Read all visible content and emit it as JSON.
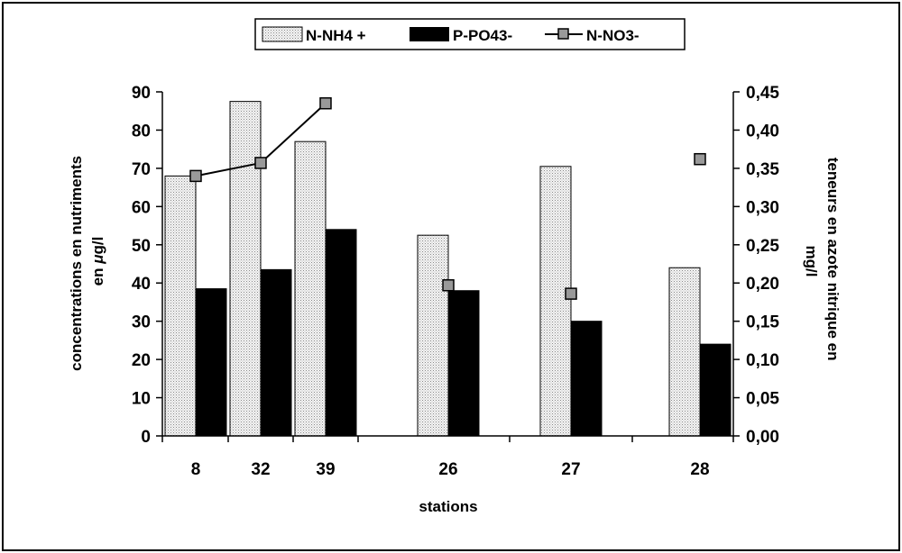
{
  "chart_data": {
    "type": "bar",
    "categories": [
      "8",
      "32",
      "39",
      "26",
      "27",
      "28"
    ],
    "series": [
      {
        "name": "N-NH4 +",
        "kind": "bar",
        "axis": "left",
        "values": [
          68,
          87.5,
          77,
          52.5,
          70.5,
          44
        ],
        "color": "#e6e6e6"
      },
      {
        "name": "P-PO43-",
        "kind": "bar",
        "axis": "left",
        "values": [
          38.5,
          43.5,
          54,
          38,
          30,
          24
        ],
        "color": "#000000"
      },
      {
        "name": "N-NO3-",
        "kind": "line",
        "axis": "right",
        "values": [
          0.34,
          0.357,
          0.435,
          0.197,
          0.186,
          0.362
        ],
        "connected_indices": [
          0,
          1,
          2
        ],
        "color": "#000000"
      }
    ],
    "xlabel": "stations",
    "ylabel": "concentrations en nutriments en μg/l",
    "ylabel_line1": "concentrations en nutriments",
    "ylabel_line2_prefix": "en ",
    "ylabel_line2_mu": "μ",
    "ylabel_line2_suffix": "g/l",
    "y2label": "teneurs en azote nitrique en mg/l",
    "y2label_line1": "teneurs en azote nitrique en",
    "y2label_line2": "mg/l",
    "ylim": [
      0,
      90
    ],
    "y2lim": [
      0,
      0.45
    ],
    "yticks": [
      "0",
      "10",
      "20",
      "30",
      "40",
      "50",
      "60",
      "70",
      "80",
      "90"
    ],
    "y2ticks": [
      "0,00",
      "0,05",
      "0,10",
      "0,15",
      "0,20",
      "0,25",
      "0,30",
      "0,35",
      "0,40",
      "0,45"
    ],
    "legend": {
      "placement": "top-center",
      "entries": [
        "N-NH4 +",
        "P-PO43-",
        "N-NO3-"
      ]
    },
    "grid": false
  }
}
